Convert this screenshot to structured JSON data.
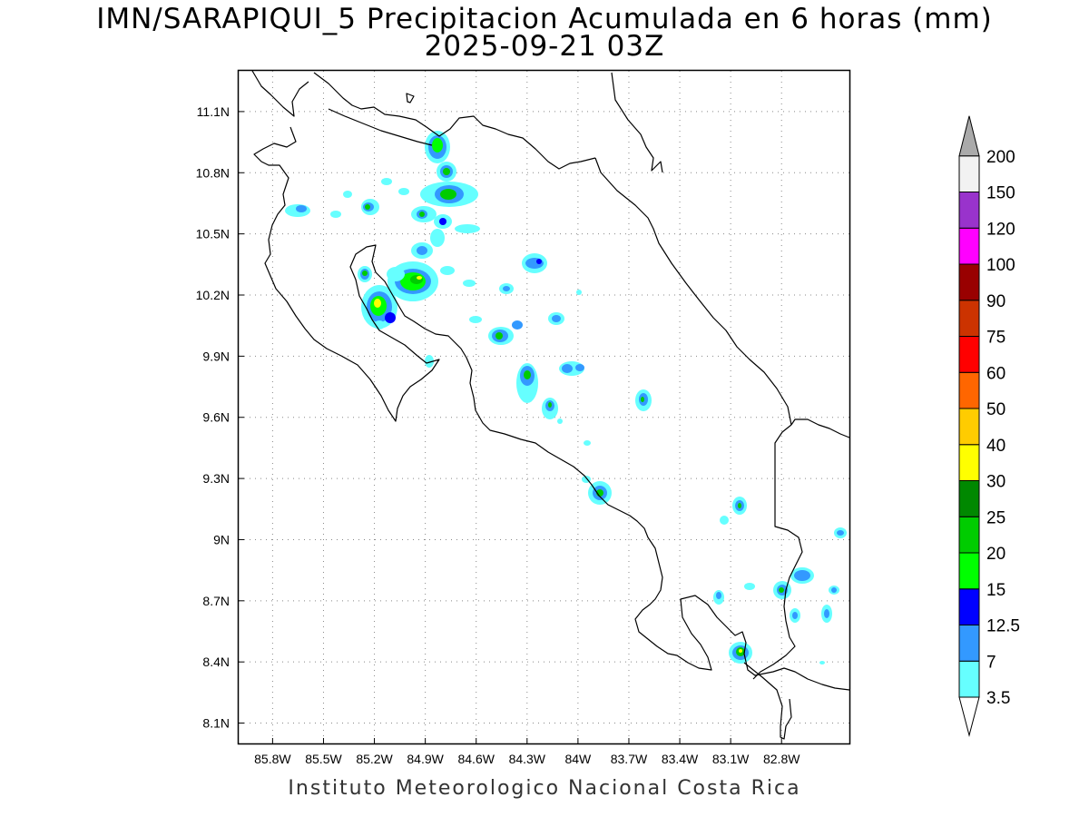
{
  "title": {
    "line1": "IMN/SARAPIQUI_5 Precipitacion Acumulada en 6 horas (mm)",
    "line2": "2025-09-21 03Z"
  },
  "footer": "Instituto Meteorologico Nacional Costa Rica",
  "axes": {
    "lon_labels": [
      "85.8W",
      "85.5W",
      "85.2W",
      "84.9W",
      "84.6W",
      "84.3W",
      "84W",
      "83.7W",
      "83.4W",
      "83.1W",
      "82.8W"
    ],
    "lon_values": [
      -85.8,
      -85.5,
      -85.2,
      -84.9,
      -84.6,
      -84.3,
      -84.0,
      -83.7,
      -83.4,
      -83.1,
      -82.8
    ],
    "lat_labels": [
      "11.1N",
      "10.8N",
      "10.5N",
      "10.2N",
      "9.9N",
      "9.6N",
      "9.3N",
      "9N",
      "8.7N",
      "8.4N",
      "8.1N"
    ],
    "lat_values": [
      11.1,
      10.8,
      10.5,
      10.2,
      9.9,
      9.6,
      9.3,
      9.0,
      8.7,
      8.4,
      8.1
    ],
    "lon_range": [
      -86.0,
      -82.4
    ],
    "lat_range": [
      8.0,
      11.3
    ],
    "grid": "dotted"
  },
  "colorbar": {
    "labels": [
      "3.5",
      "7",
      "12.5",
      "15",
      "20",
      "25",
      "30",
      "40",
      "50",
      "60",
      "75",
      "90",
      "100",
      "120",
      "150",
      "200"
    ],
    "colors": [
      "#66ffff",
      "#3399ff",
      "#0000ff",
      "#00ff00",
      "#00cc00",
      "#008800",
      "#ffff00",
      "#ffcc00",
      "#ff6600",
      "#ff0000",
      "#cc3300",
      "#990000",
      "#ff00ff",
      "#9933cc",
      "#f2f2f2",
      "#aaaaaa"
    ],
    "under_color": "#ffffff",
    "over_color": "#aaaaaa"
  },
  "colors": {
    "coast": "#000000",
    "grid": "#888888"
  }
}
